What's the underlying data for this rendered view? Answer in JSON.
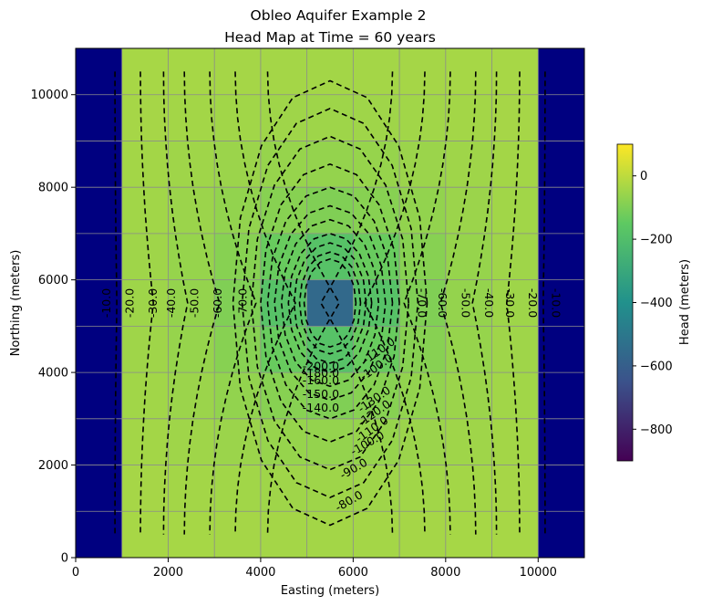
{
  "chart_data": {
    "type": "heatmap",
    "title": "Obleo Aquifer Example 2",
    "subtitle": "Head Map at Time = 60 years",
    "xlabel": "Easting (meters)",
    "ylabel": "Northing (meters)",
    "xlim": [
      0,
      11000
    ],
    "ylim": [
      0,
      11000
    ],
    "xticks": [
      0,
      2000,
      4000,
      6000,
      8000,
      10000
    ],
    "yticks": [
      0,
      2000,
      4000,
      6000,
      8000,
      10000
    ],
    "grid": true,
    "cell_size": 1000,
    "colorbar": {
      "label": "Head (meters)",
      "range": [
        -900,
        100
      ],
      "ticks": [
        0,
        -200,
        -400,
        -600,
        -800
      ],
      "colormap": "viridis"
    },
    "inactive_color": "#000080",
    "grid_line_color": "#8c8c8c",
    "contour_color": "#000000",
    "contour_levels_left": [
      "-10.0",
      "-20.0",
      "-30.0",
      "-40.0",
      "-50.0",
      "-60.0",
      "-70.0"
    ],
    "contour_levels_right": [
      "-70.0",
      "-60.0",
      "-50.0",
      "-40.0",
      "-30.0",
      "-20.0",
      "-10.0"
    ],
    "contour_levels_bottom": [
      "-200.0",
      "-180.0",
      "-160.0",
      "-150.0",
      "-140.0",
      "-130.0",
      "-120.0",
      "-110.0",
      "-100.0",
      "-90.0",
      "-80.0"
    ],
    "contour_levels_mid_right": [
      "-110.0",
      "-100.0"
    ]
  }
}
